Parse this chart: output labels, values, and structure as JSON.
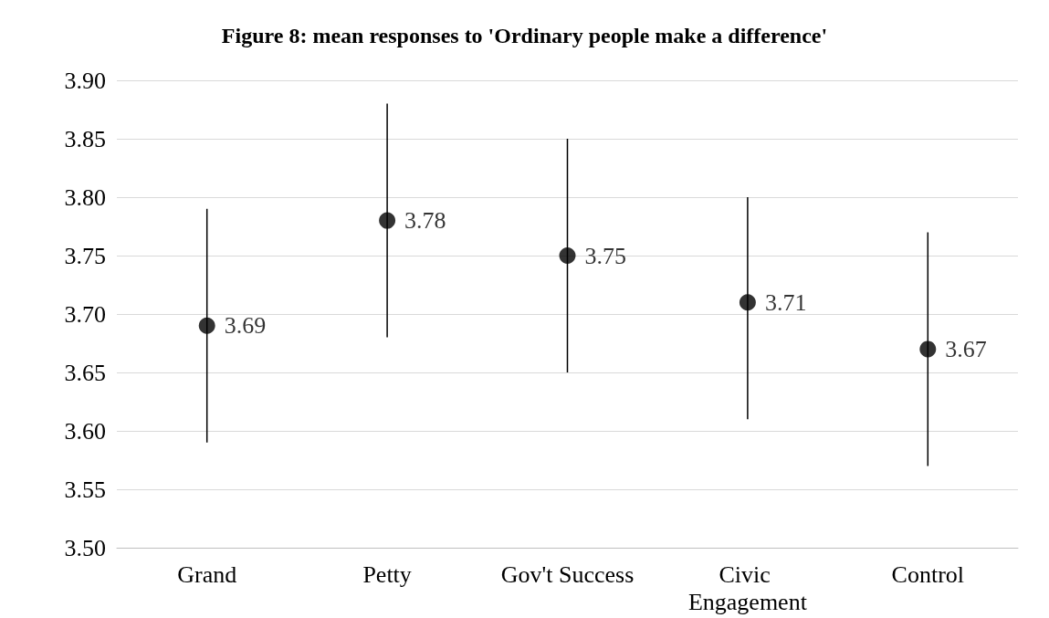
{
  "chart_data": {
    "type": "scatter",
    "title": "Figure 8: mean responses to 'Ordinary people make a difference'",
    "categories": [
      "Grand",
      "Petty",
      "Gov't Success",
      "Civic Engagement",
      "Control"
    ],
    "values": [
      3.69,
      3.78,
      3.75,
      3.71,
      3.67
    ],
    "errors": [
      0.1,
      0.1,
      0.1,
      [
        3.61,
        3.8
      ],
      0.1
    ],
    "color": "#000000",
    "marker": "circle",
    "data_labels": true,
    "grid": "y",
    "ylim": [
      3.5,
      3.9
    ],
    "yticks": [
      {
        "value": 3.5,
        "label": "3.50"
      },
      {
        "value": 3.55,
        "label": "3.55"
      },
      {
        "value": 3.6,
        "label": "3.60"
      },
      {
        "value": 3.65,
        "label": "3.65"
      },
      {
        "value": 3.7,
        "label": "3.70"
      },
      {
        "value": 3.75,
        "label": "3.75"
      },
      {
        "value": 3.8,
        "label": "3.80"
      },
      {
        "value": 3.85,
        "label": "3.85"
      },
      {
        "value": 3.9,
        "label": "3.90"
      }
    ]
  }
}
